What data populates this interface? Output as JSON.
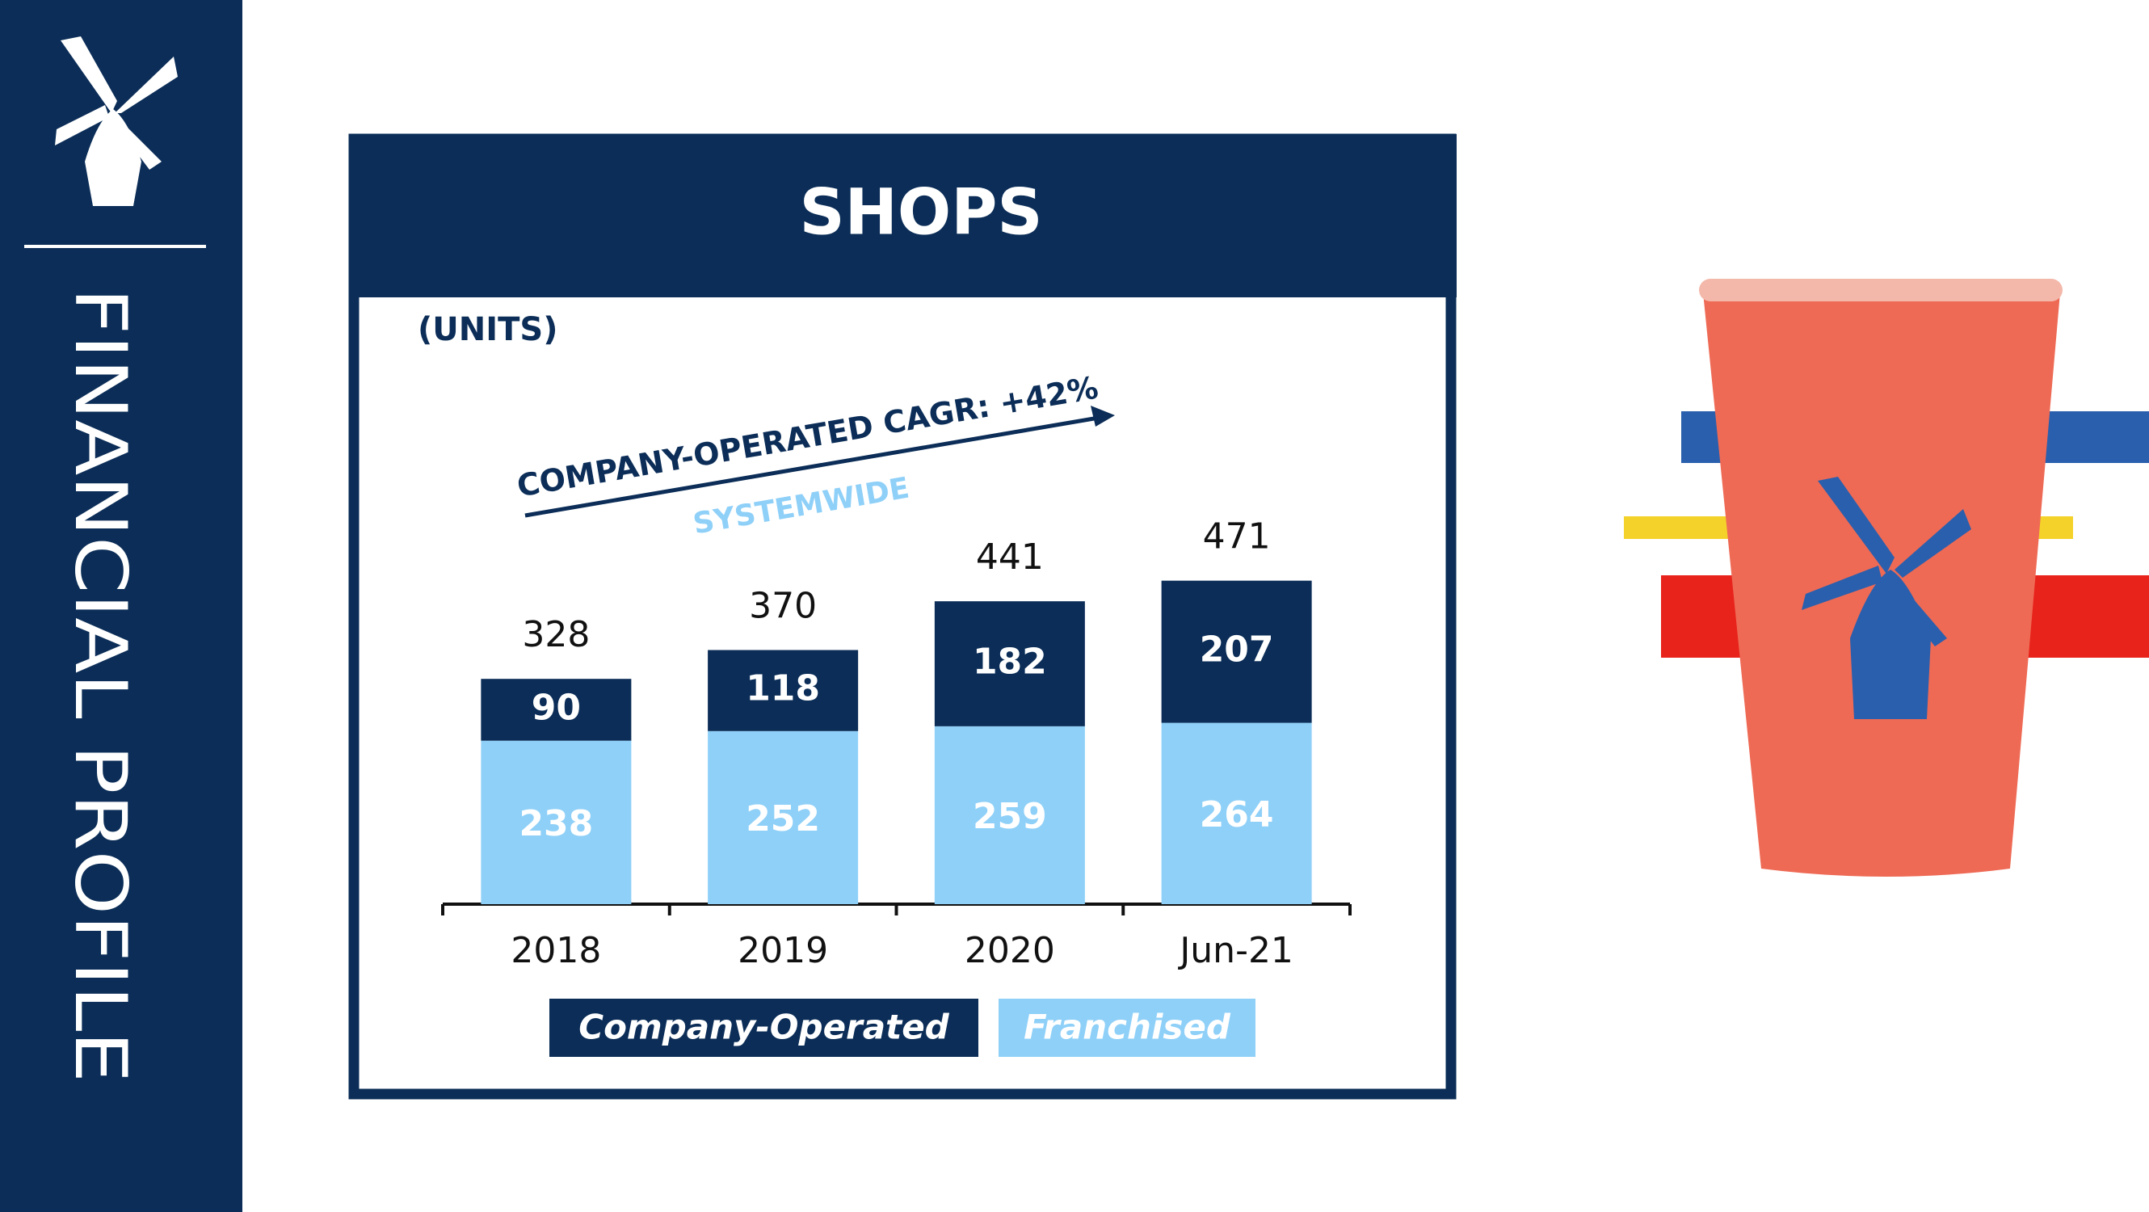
{
  "sidebar": {
    "title": "FINANCIAL PROFILE"
  },
  "chart_data": {
    "type": "stacked-bar",
    "title": "SHOPS",
    "subtitle": "(UNITS)",
    "annotations": [
      "COMPANY-OPERATED CAGR: +42%",
      "SYSTEMWIDE"
    ],
    "categories": [
      "2018",
      "2019",
      "2020",
      "Jun-21"
    ],
    "series": [
      {
        "name": "Franchised",
        "color": "#8fd0f8",
        "values": [
          238,
          252,
          259,
          264
        ]
      },
      {
        "name": "Company-Operated",
        "color": "#0b2d57",
        "values": [
          90,
          118,
          182,
          207
        ]
      }
    ],
    "totals": [
      328,
      370,
      441,
      471
    ]
  }
}
